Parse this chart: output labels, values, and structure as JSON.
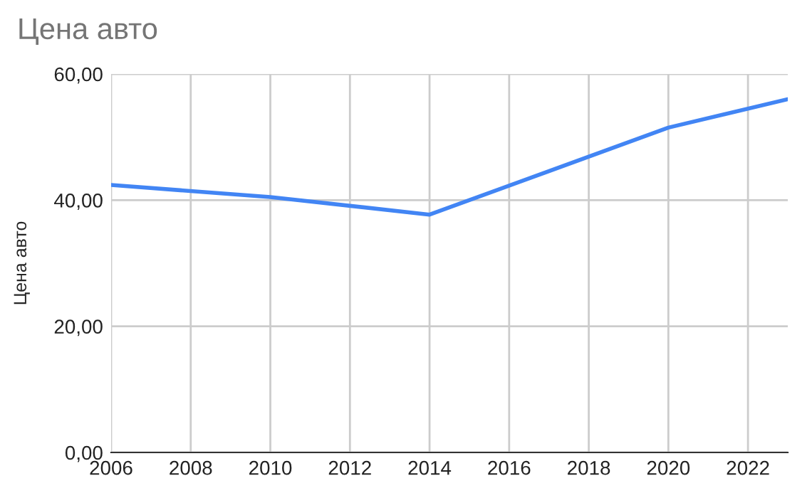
{
  "chart_data": {
    "type": "line",
    "title": "Цена авто",
    "ylabel": "Цена авто",
    "x": [
      2006,
      2010,
      2014,
      2020,
      2023
    ],
    "series": [
      {
        "color": "#4285f4",
        "values": [
          42.4,
          40.5,
          37.7,
          51.5,
          56.0
        ]
      }
    ],
    "xlim": [
      2006,
      2023
    ],
    "xticks": [
      2006,
      2008,
      2010,
      2012,
      2014,
      2016,
      2018,
      2020,
      2022
    ],
    "ylim": [
      0,
      60
    ],
    "yticks": [
      {
        "value": 0,
        "label": "0,00"
      },
      {
        "value": 20,
        "label": "20,00"
      },
      {
        "value": 40,
        "label": "40,00"
      },
      {
        "value": 60,
        "label": "60,00"
      }
    ],
    "grid": true,
    "legend": false,
    "marker": "none",
    "line_style": "solid"
  }
}
